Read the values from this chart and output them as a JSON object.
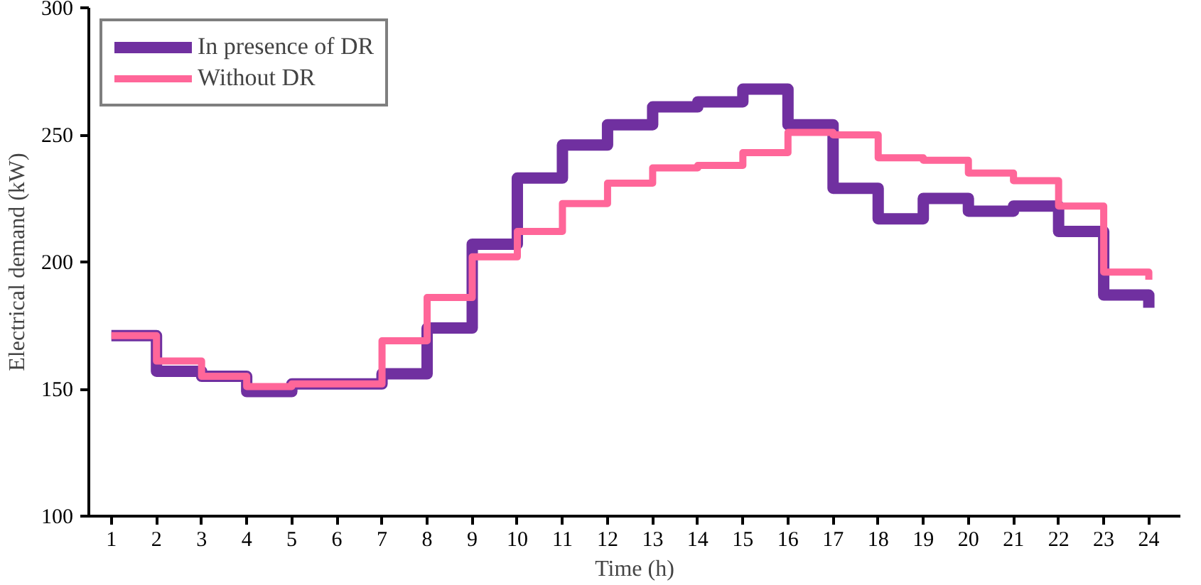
{
  "chart_data": {
    "type": "step",
    "xlabel": "Time (h)",
    "ylabel": "Electrical demand (kW)",
    "x": [
      1,
      2,
      3,
      4,
      5,
      6,
      7,
      8,
      9,
      10,
      11,
      12,
      13,
      14,
      15,
      16,
      17,
      18,
      19,
      20,
      21,
      22,
      23,
      24
    ],
    "xlim": [
      0.5,
      24.7
    ],
    "xticks": [
      1,
      2,
      3,
      4,
      5,
      6,
      7,
      8,
      9,
      10,
      11,
      12,
      13,
      14,
      15,
      16,
      17,
      18,
      19,
      20,
      21,
      22,
      23,
      24
    ],
    "ylim": [
      100,
      300
    ],
    "yticks": [
      100,
      150,
      200,
      250,
      300
    ],
    "series": [
      {
        "name": "In presence of DR",
        "color": "#7030a0",
        "values": [
          171,
          157,
          155,
          149,
          152,
          152,
          156,
          174,
          207,
          233,
          246,
          254,
          261,
          263,
          268,
          254,
          229,
          217,
          225,
          220,
          222,
          212,
          187,
          182
        ]
      },
      {
        "name": "Without DR",
        "color": "#ff6699",
        "values": [
          171,
          161,
          155,
          151,
          152,
          152,
          169,
          186,
          202,
          212,
          223,
          231,
          237,
          238,
          243,
          251,
          250,
          241,
          240,
          235,
          232,
          222,
          196,
          193
        ]
      }
    ],
    "legend": "top left",
    "grid": false
  }
}
